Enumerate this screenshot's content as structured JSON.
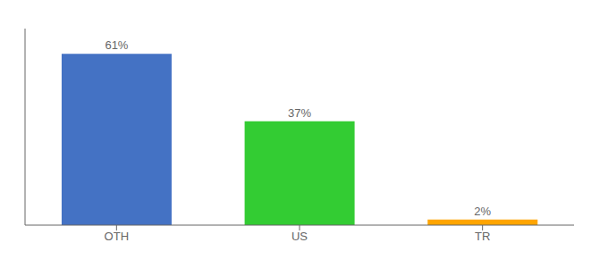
{
  "chart_data": {
    "type": "bar",
    "categories": [
      "OTH",
      "US",
      "TR"
    ],
    "values": [
      61,
      37,
      2
    ],
    "value_labels": [
      "61%",
      "37%",
      "2%"
    ],
    "colors": [
      "#4472C4",
      "#33CC33",
      "#FFA500"
    ],
    "ylim": [
      0,
      70
    ],
    "yticks": [],
    "data_labels": true,
    "tick_labels": "x"
  }
}
